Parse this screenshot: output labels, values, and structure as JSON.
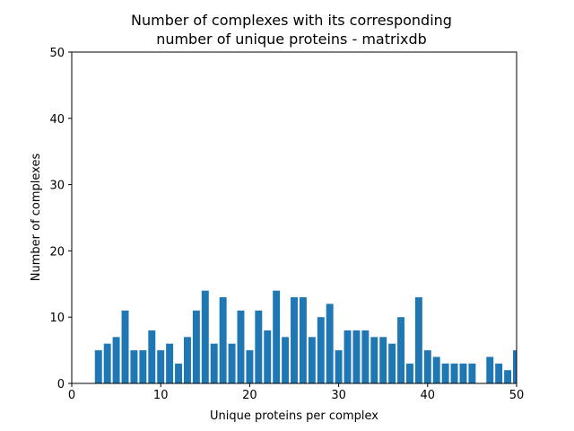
{
  "chart_data": {
    "type": "bar",
    "title_lines": [
      "Number of complexes with its corresponding",
      "number of unique proteins - matrixdb"
    ],
    "xlabel": "Unique proteins per complex",
    "ylabel": "Number of complexes",
    "xlim": [
      0,
      50
    ],
    "ylim": [
      0,
      50
    ],
    "xticks": [
      0,
      10,
      20,
      30,
      40,
      50
    ],
    "yticks": [
      0,
      10,
      20,
      30,
      40,
      50
    ],
    "grid": false,
    "bar_color": "#1f77b4",
    "x": [
      3,
      4,
      5,
      6,
      7,
      8,
      9,
      10,
      11,
      12,
      13,
      14,
      15,
      16,
      17,
      18,
      19,
      20,
      21,
      22,
      23,
      24,
      25,
      26,
      27,
      28,
      29,
      30,
      31,
      32,
      33,
      34,
      35,
      36,
      37,
      38,
      39,
      40,
      41,
      42,
      43,
      44,
      45,
      47,
      48,
      49,
      50
    ],
    "values": [
      5,
      6,
      7,
      11,
      5,
      5,
      8,
      5,
      6,
      3,
      7,
      11,
      14,
      6,
      13,
      6,
      11,
      5,
      11,
      8,
      14,
      7,
      13,
      13,
      7,
      10,
      12,
      5,
      8,
      8,
      8,
      7,
      7,
      6,
      10,
      3,
      13,
      5,
      4,
      3,
      3,
      3,
      3,
      4,
      3,
      2,
      5
    ]
  }
}
